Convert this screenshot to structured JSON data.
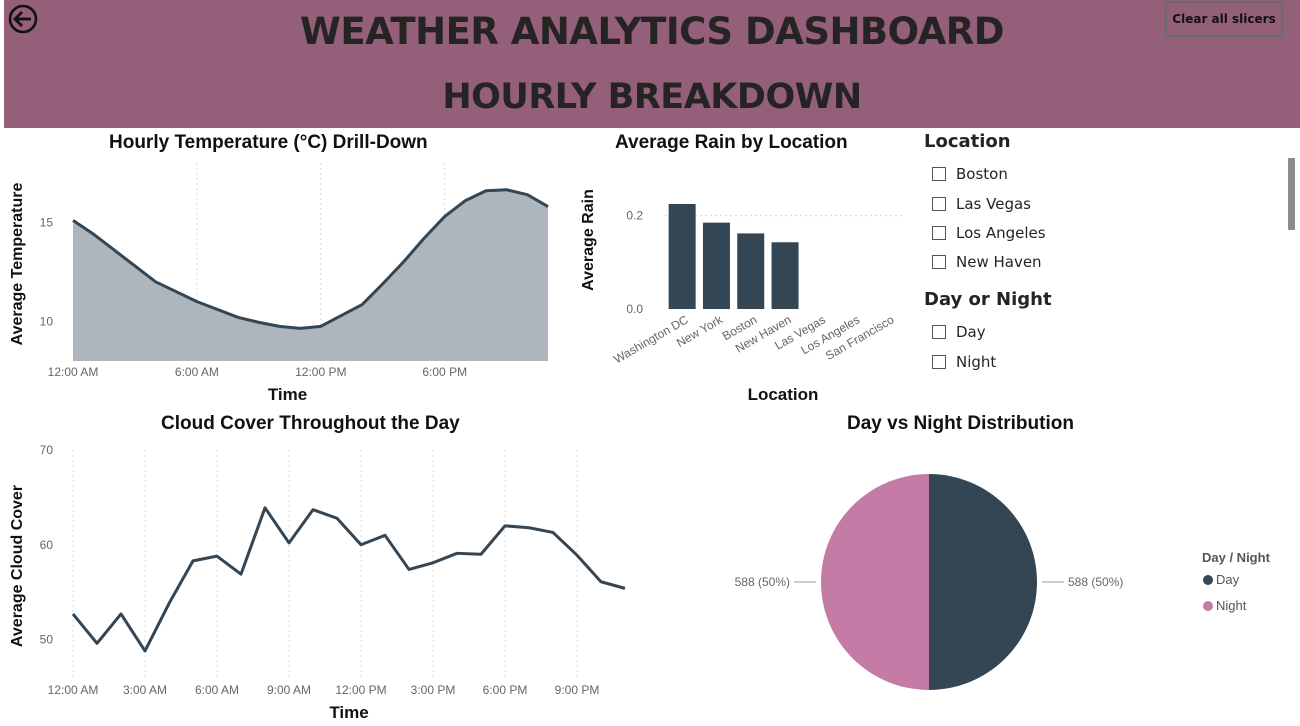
{
  "header": {
    "title": "WEATHER ANALYTICS DASHBOARD",
    "subtitle": "HOURLY BREAKDOWN",
    "clear_button": "Clear all slicers",
    "back_icon": "arrow-left-circle-icon",
    "background_color": "#946079"
  },
  "slicers": {
    "location": {
      "title": "Location",
      "items": [
        "Boston",
        "Las Vegas",
        "Los Angeles",
        "New Haven"
      ]
    },
    "day_night": {
      "title": "Day or Night",
      "items": [
        "Day",
        "Night"
      ]
    }
  },
  "colors": {
    "series_dark": "#344654",
    "area_fill": "#aeb5bc",
    "night_pink": "#c47ba5"
  },
  "chart_data": [
    {
      "id": "temperature",
      "type": "area",
      "title": "Hourly Temperature (°C) Drill-Down",
      "xlabel": "Time",
      "ylabel": "Average Temperature",
      "x": [
        0,
        1,
        2,
        3,
        4,
        5,
        6,
        7,
        8,
        9,
        10,
        11,
        12,
        13,
        14,
        15,
        16,
        17,
        18,
        19,
        20,
        21,
        22,
        23
      ],
      "x_tick_values": [
        0,
        6,
        12,
        18
      ],
      "x_tick_labels": [
        "12:00 AM",
        "6:00 AM",
        "12:00 PM",
        "6:00 PM"
      ],
      "values": [
        15.1,
        14.4,
        13.6,
        12.8,
        12.0,
        11.5,
        11.0,
        10.6,
        10.2,
        9.95,
        9.75,
        9.65,
        9.75,
        10.3,
        10.85,
        11.9,
        13.0,
        14.2,
        15.3,
        16.1,
        16.6,
        16.65,
        16.4,
        15.8
      ],
      "ylim": [
        8,
        18
      ],
      "y_ticks": [
        10,
        15
      ],
      "grid": "vertical dotted"
    },
    {
      "id": "rain",
      "type": "bar",
      "title": "Average Rain by Location",
      "xlabel": "Location",
      "ylabel": "Average Rain",
      "categories": [
        "Washington DC",
        "New York",
        "Boston",
        "New Haven",
        "Las Vegas",
        "Los Angeles",
        "San Francisco"
      ],
      "values": [
        0.225,
        0.185,
        0.162,
        0.143,
        0,
        0,
        0
      ],
      "ylim": [
        0,
        0.3
      ],
      "y_ticks": [
        0.0,
        0.2
      ],
      "y_tick_labels": [
        "0.0",
        "0.2"
      ],
      "grid": "horizontal dotted"
    },
    {
      "id": "cloud",
      "type": "line",
      "title": "Cloud Cover Throughout the Day",
      "xlabel": "Time",
      "ylabel": "Average Cloud Cover",
      "x": [
        0,
        1,
        2,
        3,
        4,
        5,
        6,
        7,
        8,
        9,
        10,
        11,
        12,
        13,
        14,
        15,
        16,
        17,
        18,
        19,
        20,
        21,
        22,
        23
      ],
      "x_tick_values": [
        0,
        3,
        6,
        9,
        12,
        15,
        18,
        21
      ],
      "x_tick_labels": [
        "12:00 AM",
        "3:00 AM",
        "6:00 AM",
        "9:00 AM",
        "12:00 PM",
        "3:00 PM",
        "6:00 PM",
        "9:00 PM"
      ],
      "values": [
        52.7,
        49.6,
        52.7,
        48.8,
        53.8,
        58.3,
        58.8,
        56.9,
        63.9,
        60.2,
        63.7,
        62.8,
        60.0,
        61.0,
        57.4,
        58.1,
        59.1,
        59.0,
        62.0,
        61.8,
        61.3,
        58.9,
        56.1,
        55.4
      ],
      "ylim": [
        47,
        70
      ],
      "y_ticks": [
        50,
        60,
        70
      ],
      "grid": "vertical dotted"
    },
    {
      "id": "day_night_pie",
      "type": "pie",
      "title": "Day vs Night Distribution",
      "legend_title": "Day / Night",
      "legend_position": "right",
      "labels": [
        "Day",
        "Night"
      ],
      "values": [
        588,
        588
      ],
      "data_labels": [
        "588 (50%)",
        "588 (50%)"
      ],
      "colors": [
        "#344654",
        "#c47ba5"
      ]
    }
  ]
}
